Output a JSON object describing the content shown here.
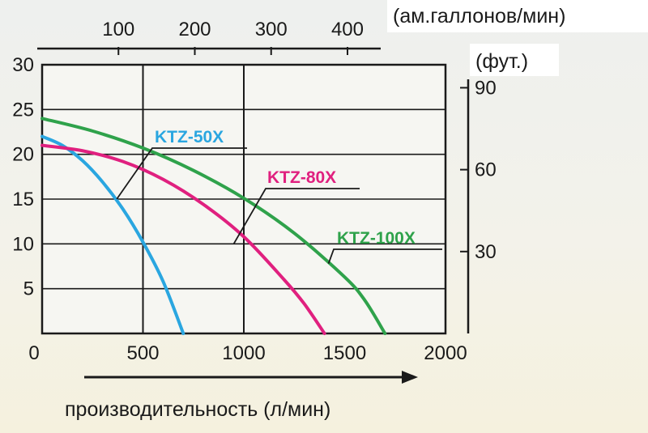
{
  "chart_data": {
    "type": "line",
    "xlabel": "производительность (л/мин)",
    "x_ticks": [
      "0",
      "500",
      "1000",
      "1500",
      "2000"
    ],
    "xlim": [
      0,
      2000
    ],
    "y_left_ticks": [
      "5",
      "10",
      "15",
      "20",
      "25",
      "30"
    ],
    "ylim": [
      0,
      30
    ],
    "x_top_unit": "(ам.галлонов/мин)",
    "x_top_ticks": [
      "100",
      "200",
      "300",
      "400"
    ],
    "y_right_unit": "(фут.)",
    "y_right_ticks": [
      "30",
      "60",
      "90"
    ],
    "grid": true,
    "series": [
      {
        "name": "KTZ-50X",
        "color": "#2aa6e0",
        "x": [
          0,
          100,
          200,
          300,
          400,
          500,
          600,
          700
        ],
        "y": [
          22,
          21,
          19.3,
          16.9,
          13.9,
          10.2,
          5.8,
          0
        ]
      },
      {
        "name": "KTZ-80X",
        "color": "#e0207f",
        "x": [
          0,
          200,
          400,
          600,
          800,
          1000,
          1200,
          1300,
          1400
        ],
        "y": [
          21,
          20.4,
          19.2,
          17.2,
          14.4,
          10.8,
          6,
          3.3,
          0
        ]
      },
      {
        "name": "KTZ-100X",
        "color": "#2fa24b",
        "x": [
          0,
          250,
          500,
          750,
          1000,
          1250,
          1500,
          1600,
          1700
        ],
        "y": [
          24,
          22.6,
          20.7,
          18.2,
          15.1,
          11.2,
          6.3,
          3.7,
          0
        ]
      }
    ]
  }
}
